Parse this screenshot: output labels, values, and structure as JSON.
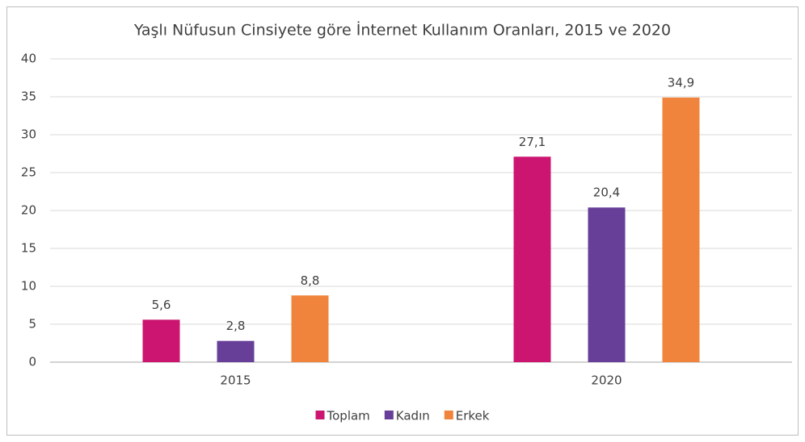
{
  "chart_data": {
    "type": "bar",
    "title": "Yaşlı Nüfusun Cinsiyete göre İnternet Kullanım Oranları, 2015 ve 2020",
    "categories": [
      "2015",
      "2020"
    ],
    "series": [
      {
        "name": "Toplam",
        "color": "#cc1570",
        "values": [
          5.6,
          27.1
        ],
        "value_labels": [
          "5,6",
          "27,1"
        ]
      },
      {
        "name": "Kadın",
        "color": "#673f98",
        "values": [
          2.8,
          20.4
        ],
        "value_labels": [
          "2,8",
          "20,4"
        ]
      },
      {
        "name": "Erkek",
        "color": "#f0843c",
        "values": [
          8.8,
          34.9
        ],
        "value_labels": [
          "8,8",
          "34,9"
        ]
      }
    ],
    "ylim": [
      0,
      40
    ],
    "yticks": [
      0,
      5,
      10,
      15,
      20,
      25,
      30,
      35,
      40
    ],
    "grid": true,
    "legend": "bottom"
  }
}
